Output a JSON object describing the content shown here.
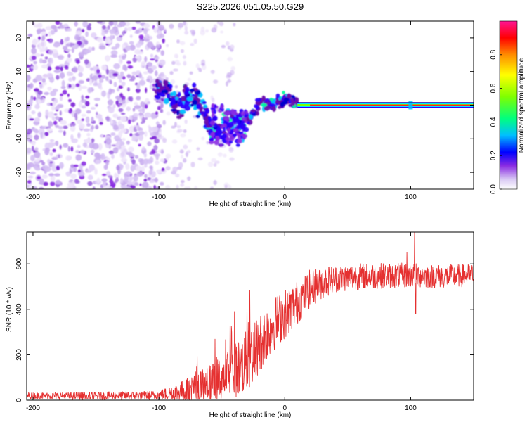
{
  "title": "S225.2026.051.05.50.G29",
  "chart_data": [
    {
      "type": "heatmap",
      "title": "S225.2026.051.05.50.G29",
      "xlabel": "Height of straight line (km)",
      "ylabel": "Frequency (Hz)",
      "xlim": [
        -205,
        150
      ],
      "ylim": [
        -25,
        25
      ],
      "xticks": [
        -200,
        -100,
        0,
        100
      ],
      "yticks": [
        -20,
        -10,
        0,
        10,
        20
      ],
      "colorbar": {
        "label": "Normalized spectral amplitude",
        "range": [
          0,
          1
        ],
        "ticks": [
          0.0,
          0.2,
          0.4,
          0.6,
          0.8
        ],
        "tick_labels": [
          "0.0",
          "0.2",
          "0.4",
          "0.6",
          "0.8"
        ],
        "colormap": [
          "#ffffff",
          "#d8c8f4",
          "#8a2be2",
          "#0000ff",
          "#00bfff",
          "#00ff7f",
          "#7fff00",
          "#ffff00",
          "#ff8c00",
          "#ff0000",
          "#ff1493"
        ]
      },
      "features": {
        "noise_region_x": [
          -205,
          -100
        ],
        "onset_x": -100,
        "signal_center_freq_hz": 0,
        "oscillation_peaks": [
          {
            "x": -80,
            "freq": 5
          },
          {
            "x": -75,
            "freq": 2
          },
          {
            "x": -50,
            "freq": -8
          },
          {
            "x": -30,
            "freq": -3
          },
          {
            "x": -15,
            "freq": 0
          },
          {
            "x": -5,
            "freq": 2
          },
          {
            "x": 5,
            "freq": 1
          }
        ],
        "steady_line_x": [
          10,
          150
        ],
        "strong_amplitude_from_x": 20
      }
    },
    {
      "type": "line",
      "xlabel": "Height of straight line (km)",
      "ylabel": "SNR (10 * v/v)",
      "xlim": [
        -205,
        150
      ],
      "ylim": [
        0,
        740
      ],
      "xticks": [
        -200,
        -100,
        0,
        100
      ],
      "yticks": [
        0,
        200,
        400,
        600
      ],
      "series": [
        {
          "name": "SNR",
          "color": "#e53030",
          "trend": {
            "x": [
              -205,
              -150,
              -100,
              -80,
              -60,
              -40,
              -30,
              -20,
              -10,
              0,
              10,
              20,
              30,
              40,
              60,
              80,
              100,
              120,
              150
            ],
            "y": [
              20,
              18,
              22,
              40,
              70,
              130,
              170,
              250,
              330,
              380,
              430,
              490,
              520,
              535,
              545,
              548,
              550,
              545,
              550
            ]
          },
          "noise_amplitude": {
            "x": [
              -205,
              -100,
              -60,
              -30,
              0,
              40,
              150
            ],
            "y": [
              15,
              20,
              80,
              140,
              110,
              60,
              50
            ]
          },
          "spikes": [
            {
              "x": -40,
              "y": 390
            },
            {
              "x": -30,
              "y": 440
            },
            {
              "x": 97,
              "y": 650
            },
            {
              "x": 103,
              "y": 740
            },
            {
              "x": 104,
              "y": 380
            }
          ]
        }
      ]
    }
  ]
}
